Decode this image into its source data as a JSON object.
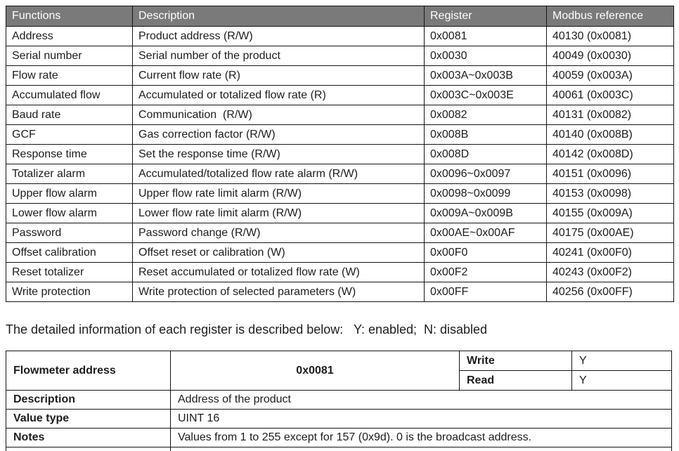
{
  "colors": {
    "header_bg": "#7a7a7a",
    "header_text": "#ffffff",
    "border": "#151515",
    "text": "#1d1d1d",
    "page_bg": "#ffffff"
  },
  "register_table": {
    "headers": [
      "Functions",
      "Description",
      "Register",
      "Modbus reference"
    ],
    "rows": [
      [
        "Address",
        "Product address (R/W)",
        "0x0081",
        "40130 (0x0081)"
      ],
      [
        "Serial number",
        "Serial number of the product",
        "0x0030",
        "40049 (0x0030)"
      ],
      [
        "Flow rate",
        "Current flow rate (R)",
        "0x003A~0x003B",
        "40059 (0x003A)"
      ],
      [
        "Accumulated flow",
        "Accumulated or totalized flow rate (R)",
        "0x003C~0x003E",
        "40061 (0x003C)"
      ],
      [
        "Baud rate",
        "Communication  (R/W)",
        "0x0082",
        "40131 (0x0082)"
      ],
      [
        "GCF",
        "Gas correction factor (R/W)",
        "0x008B",
        "40140 (0x008B)"
      ],
      [
        "Response time",
        "Set the response time (R/W)",
        "0x008D",
        "40142 (0x008D)"
      ],
      [
        "Totalizer alarm",
        "Accumulated/totalized flow rate alarm (R/W)",
        "0x0096~0x0097",
        "40151 (0x0096)"
      ],
      [
        "Upper flow alarm",
        "Upper flow rate limit alarm (R/W)",
        "0x0098~0x0099",
        "40153 (0x0098)"
      ],
      [
        "Lower flow alarm",
        "Lower flow rate limit alarm (R/W)",
        "0x009A~0x009B",
        "40155 (0x009A)"
      ],
      [
        "Password",
        "Password change (R/W)",
        "0x00AE~0x00AF",
        "40175 (0x00AE)"
      ],
      [
        "Offset calibration",
        "Offset reset or calibration (W)",
        "0x00F0",
        "40241 (0x00F0)"
      ],
      [
        "Reset totalizer",
        "Reset accumulated or totalized flow rate (W)",
        "0x00F2",
        "40243 (0x00F2)"
      ],
      [
        "Write protection",
        "Write protection of selected parameters (W)",
        "0x00FF",
        "40256 (0x00FF)"
      ]
    ]
  },
  "intro_text": "The detailed information of each register is described below:   Y: enabled;  N: disabled",
  "detail_table": {
    "address_label": "Flowmeter address",
    "address_register": "0x0081",
    "write_label": "Write",
    "write_value": "Y",
    "read_label": "Read",
    "read_value": "Y",
    "rows": [
      {
        "label": "Description",
        "value": "Address of the product"
      },
      {
        "label": "Value type",
        "value": "UINT 16"
      },
      {
        "label": "Notes",
        "value": "Values from 1 to 255 except for 157 (0x9d). 0 is the broadcast address."
      }
    ]
  }
}
